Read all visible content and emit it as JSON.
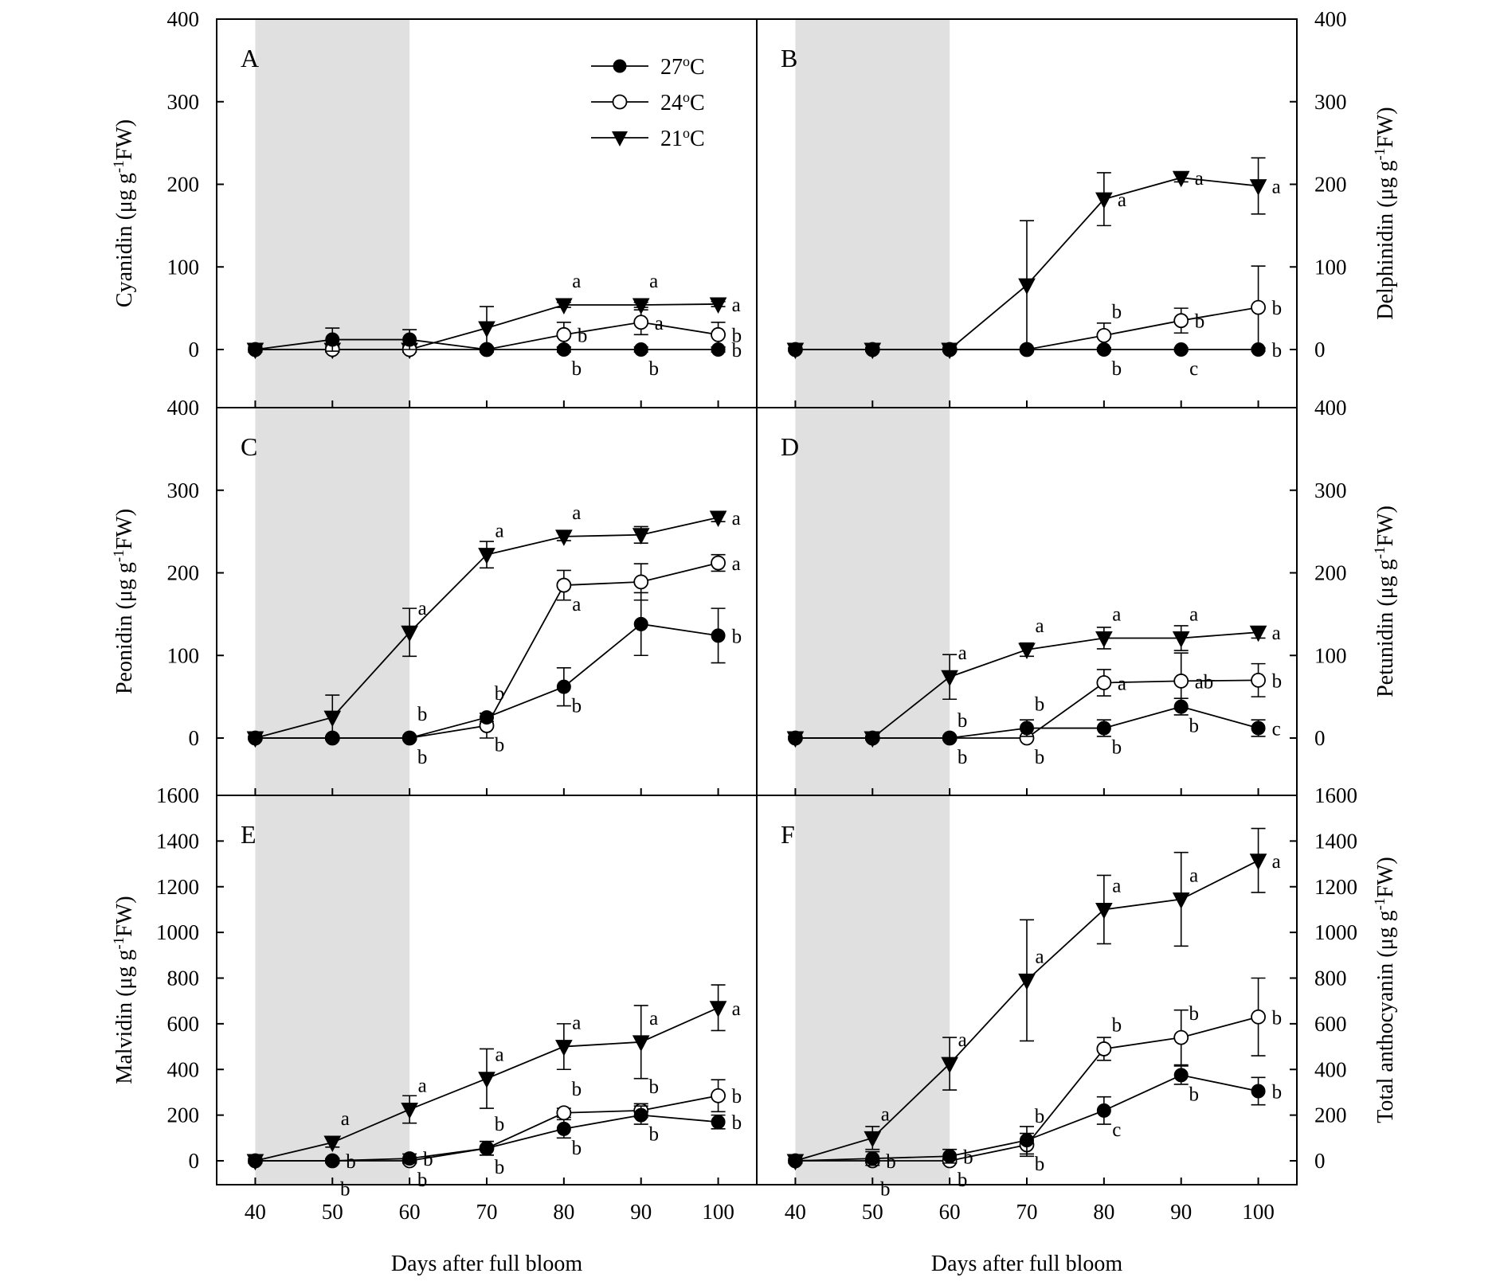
{
  "figure": {
    "x_axis_label": "Days after full bloom",
    "legend": {
      "placement": "panel-A-top-right",
      "entries": [
        {
          "label": "27",
          "degree": "o",
          "unit": "C",
          "marker": "filled-circle"
        },
        {
          "label": "24",
          "degree": "o",
          "unit": "C",
          "marker": "open-circle"
        },
        {
          "label": "21",
          "degree": "o",
          "unit": "C",
          "marker": "filled-triangle-down"
        }
      ]
    },
    "shaded_interval": [
      40,
      60
    ],
    "colors": {
      "shade": "#e0e0e0",
      "line": "#000000"
    }
  },
  "chart_data": [
    {
      "type": "line",
      "panel": "A",
      "ylabel": {
        "main": "Cyanidin (μg g",
        "sup": "-1",
        "tail": "FW)"
      },
      "y_axis_side": "left",
      "ylim": [
        0,
        400
      ],
      "yticks": [
        0,
        100,
        200,
        300,
        400
      ],
      "xticks": [
        40,
        50,
        60,
        70,
        80,
        90,
        100
      ],
      "x": [
        40,
        50,
        60,
        70,
        80,
        90,
        100
      ],
      "series": [
        {
          "name": "27°C",
          "values": [
            0,
            12,
            12,
            0,
            0,
            0,
            0
          ],
          "errors": [
            3,
            14,
            12,
            3,
            3,
            3,
            3
          ],
          "letters": [
            null,
            null,
            null,
            null,
            {
              "t": "b",
              "pos": "below"
            },
            {
              "t": "b",
              "pos": "below"
            },
            {
              "t": "b",
              "pos": "right"
            }
          ]
        },
        {
          "name": "24°C",
          "values": [
            0,
            0,
            0,
            0,
            18,
            33,
            18
          ],
          "errors": [
            3,
            3,
            3,
            3,
            15,
            15,
            15
          ],
          "letters": [
            null,
            null,
            null,
            null,
            {
              "t": "b",
              "pos": "right"
            },
            {
              "t": "a",
              "pos": "right"
            },
            {
              "t": "b",
              "pos": "right"
            }
          ]
        },
        {
          "name": "21°C",
          "values": [
            0,
            0,
            0,
            26,
            54,
            54,
            55
          ],
          "errors": [
            3,
            3,
            3,
            26,
            3,
            3,
            3
          ],
          "letters": [
            null,
            null,
            null,
            null,
            {
              "t": "a",
              "pos": "above"
            },
            {
              "t": "a",
              "pos": "above"
            },
            {
              "t": "a",
              "pos": "right"
            }
          ]
        }
      ]
    },
    {
      "type": "line",
      "panel": "B",
      "ylabel": {
        "main": "Delphinidin (μg g",
        "sup": "-1",
        "tail": "FW)"
      },
      "y_axis_side": "right",
      "ylim": [
        0,
        400
      ],
      "yticks": [
        0,
        100,
        200,
        300,
        400
      ],
      "xticks": [
        40,
        50,
        60,
        70,
        80,
        90,
        100
      ],
      "x": [
        40,
        50,
        60,
        70,
        80,
        90,
        100
      ],
      "series": [
        {
          "name": "27°C",
          "values": [
            0,
            0,
            0,
            0,
            0,
            0,
            0
          ],
          "errors": [
            2,
            2,
            2,
            2,
            2,
            2,
            2
          ],
          "letters": [
            null,
            null,
            null,
            null,
            {
              "t": "b",
              "pos": "below"
            },
            {
              "t": "c",
              "pos": "below"
            },
            {
              "t": "b",
              "pos": "right"
            }
          ]
        },
        {
          "name": "24°C",
          "values": [
            0,
            0,
            0,
            0,
            17,
            35,
            51
          ],
          "errors": [
            2,
            2,
            2,
            2,
            15,
            15,
            50
          ],
          "letters": [
            null,
            null,
            null,
            null,
            {
              "t": "b",
              "pos": "above"
            },
            {
              "t": "b",
              "pos": "right"
            },
            {
              "t": "b",
              "pos": "right"
            }
          ]
        },
        {
          "name": "21°C",
          "values": [
            0,
            0,
            0,
            78,
            182,
            208,
            198
          ],
          "errors": [
            2,
            2,
            2,
            78,
            32,
            5,
            34
          ],
          "letters": [
            null,
            null,
            null,
            null,
            {
              "t": "a",
              "pos": "right"
            },
            {
              "t": "a",
              "pos": "right"
            },
            {
              "t": "a",
              "pos": "right"
            }
          ]
        }
      ]
    },
    {
      "type": "line",
      "panel": "C",
      "ylabel": {
        "main": "Peonidin (μg g",
        "sup": "-1",
        "tail": "FW)"
      },
      "y_axis_side": "left",
      "ylim": [
        0,
        400
      ],
      "yticks": [
        0,
        100,
        200,
        300,
        400
      ],
      "xticks": [
        40,
        50,
        60,
        70,
        80,
        90,
        100
      ],
      "x": [
        40,
        50,
        60,
        70,
        80,
        90,
        100
      ],
      "series": [
        {
          "name": "27°C",
          "values": [
            0,
            0,
            0,
            25,
            62,
            138,
            124
          ],
          "errors": [
            2,
            2,
            2,
            5,
            23,
            38,
            33
          ],
          "letters": [
            null,
            null,
            null,
            {
              "t": "b",
              "pos": "above"
            },
            {
              "t": "b",
              "pos": "below"
            },
            null,
            {
              "t": "b",
              "pos": "right"
            }
          ]
        },
        {
          "name": "24°C",
          "values": [
            0,
            0,
            0,
            15,
            185,
            189,
            212
          ],
          "errors": [
            2,
            2,
            2,
            15,
            18,
            22,
            10
          ],
          "letters": [
            null,
            null,
            {
              "t": "b",
              "pos": "below"
            },
            {
              "t": "b",
              "pos": "below"
            },
            {
              "t": "a",
              "pos": "below"
            },
            null,
            {
              "t": "a",
              "pos": "right"
            }
          ]
        },
        {
          "name": "21°C",
          "values": [
            0,
            25,
            128,
            222,
            244,
            246,
            267
          ],
          "errors": [
            2,
            27,
            29,
            16,
            5,
            10,
            5
          ],
          "letters": [
            null,
            null,
            {
              "t": "a",
              "pos": "above"
            },
            {
              "t": "a",
              "pos": "above"
            },
            {
              "t": "a",
              "pos": "above"
            },
            null,
            {
              "t": "a",
              "pos": "right"
            }
          ]
        }
      ],
      "extra_letters": [
        {
          "t": "b",
          "x": 60,
          "y": 30
        }
      ]
    },
    {
      "type": "line",
      "panel": "D",
      "ylabel": {
        "main": "Petunidin (μg g",
        "sup": "-1",
        "tail": "FW)"
      },
      "y_axis_side": "right",
      "ylim": [
        0,
        400
      ],
      "yticks": [
        0,
        100,
        200,
        300,
        400
      ],
      "xticks": [
        40,
        50,
        60,
        70,
        80,
        90,
        100
      ],
      "x": [
        40,
        50,
        60,
        70,
        80,
        90,
        100
      ],
      "series": [
        {
          "name": "27°C",
          "values": [
            0,
            0,
            0,
            12,
            12,
            38,
            12
          ],
          "errors": [
            2,
            2,
            2,
            10,
            10,
            10,
            10
          ],
          "letters": [
            null,
            null,
            null,
            {
              "t": "b",
              "pos": "above"
            },
            {
              "t": "b",
              "pos": "below"
            },
            {
              "t": "b",
              "pos": "below"
            },
            {
              "t": "c",
              "pos": "right"
            }
          ]
        },
        {
          "name": "24°C",
          "values": [
            0,
            0,
            0,
            0,
            67,
            69,
            70
          ],
          "errors": [
            2,
            2,
            2,
            2,
            16,
            34,
            20
          ],
          "letters": [
            null,
            null,
            {
              "t": "b",
              "pos": "below"
            },
            {
              "t": "b",
              "pos": "below"
            },
            {
              "t": "a",
              "pos": "right"
            },
            {
              "t": "ab",
              "pos": "right"
            },
            {
              "t": "b",
              "pos": "right"
            }
          ]
        },
        {
          "name": "21°C",
          "values": [
            0,
            0,
            74,
            107,
            121,
            121,
            128
          ],
          "errors": [
            2,
            2,
            27,
            8,
            13,
            15,
            7
          ],
          "letters": [
            null,
            null,
            {
              "t": "a",
              "pos": "above"
            },
            {
              "t": "a",
              "pos": "above"
            },
            {
              "t": "a",
              "pos": "above"
            },
            {
              "t": "a",
              "pos": "above"
            },
            {
              "t": "a",
              "pos": "right"
            }
          ]
        }
      ],
      "extra_letters": [
        {
          "t": "b",
          "x": 60,
          "y": 22
        }
      ]
    },
    {
      "type": "line",
      "panel": "E",
      "ylabel": {
        "main": "Malvidin (μg g",
        "sup": "-1",
        "tail": "FW)"
      },
      "y_axis_side": "left",
      "ylim": [
        0,
        1600
      ],
      "yticks": [
        0,
        200,
        400,
        600,
        800,
        1000,
        1200,
        1400,
        1600
      ],
      "xticks": [
        40,
        50,
        60,
        70,
        80,
        90,
        100
      ],
      "x": [
        40,
        50,
        60,
        70,
        80,
        90,
        100
      ],
      "series": [
        {
          "name": "27°C",
          "values": [
            0,
            0,
            10,
            55,
            140,
            200,
            170
          ],
          "errors": [
            10,
            10,
            20,
            30,
            40,
            40,
            30
          ],
          "letters": [
            null,
            null,
            {
              "t": "b",
              "pos": "right"
            },
            {
              "t": "b",
              "pos": "below"
            },
            {
              "t": "b",
              "pos": "below"
            },
            {
              "t": "b",
              "pos": "below"
            },
            {
              "t": "b",
              "pos": "right"
            }
          ]
        },
        {
          "name": "24°C",
          "values": [
            0,
            0,
            0,
            55,
            210,
            220,
            285
          ],
          "errors": [
            10,
            10,
            10,
            30,
            20,
            30,
            70
          ],
          "letters": [
            null,
            {
              "t": "b",
              "pos": "right"
            },
            {
              "t": "b",
              "pos": "below"
            },
            {
              "t": "b",
              "pos": "above"
            },
            {
              "t": "b",
              "pos": "above"
            },
            {
              "t": "b",
              "pos": "above"
            },
            {
              "t": "b",
              "pos": "right"
            }
          ]
        },
        {
          "name": "21°C",
          "values": [
            0,
            80,
            225,
            360,
            500,
            520,
            670
          ],
          "errors": [
            10,
            20,
            60,
            130,
            100,
            160,
            100
          ],
          "letters": [
            null,
            {
              "t": "a",
              "pos": "above"
            },
            {
              "t": "a",
              "pos": "above"
            },
            {
              "t": "a",
              "pos": "above"
            },
            {
              "t": "a",
              "pos": "above"
            },
            {
              "t": "a",
              "pos": "above"
            },
            {
              "t": "a",
              "pos": "right"
            }
          ]
        }
      ],
      "extra_letters": [
        {
          "t": "b",
          "x": 50,
          "y": -120
        }
      ]
    },
    {
      "type": "line",
      "panel": "F",
      "ylabel": {
        "main": "Total anthocyanin (μg g",
        "sup": "-1",
        "tail": "FW)"
      },
      "y_axis_side": "right",
      "ylim": [
        0,
        1600
      ],
      "yticks": [
        0,
        200,
        400,
        600,
        800,
        1000,
        1200,
        1400,
        1600
      ],
      "xticks": [
        40,
        50,
        60,
        70,
        80,
        90,
        100
      ],
      "x": [
        40,
        50,
        60,
        70,
        80,
        90,
        100
      ],
      "series": [
        {
          "name": "27°C",
          "values": [
            0,
            10,
            20,
            90,
            220,
            375,
            305
          ],
          "errors": [
            10,
            30,
            30,
            60,
            60,
            40,
            60
          ],
          "letters": [
            null,
            null,
            {
              "t": "b",
              "pos": "right"
            },
            {
              "t": "b",
              "pos": "above"
            },
            {
              "t": "c",
              "pos": "below"
            },
            {
              "t": "b",
              "pos": "below"
            },
            {
              "t": "b",
              "pos": "right"
            }
          ]
        },
        {
          "name": "24°C",
          "values": [
            0,
            0,
            0,
            70,
            490,
            540,
            630
          ],
          "errors": [
            10,
            10,
            10,
            50,
            50,
            120,
            170
          ],
          "letters": [
            null,
            {
              "t": "b",
              "pos": "right"
            },
            {
              "t": "b",
              "pos": "below"
            },
            {
              "t": "b",
              "pos": "below"
            },
            {
              "t": "b",
              "pos": "above"
            },
            {
              "t": "b",
              "pos": "above"
            },
            {
              "t": "b",
              "pos": "right"
            }
          ]
        },
        {
          "name": "21°C",
          "values": [
            0,
            100,
            425,
            790,
            1100,
            1145,
            1315
          ],
          "errors": [
            10,
            50,
            115,
            265,
            150,
            205,
            140
          ],
          "letters": [
            null,
            {
              "t": "a",
              "pos": "above"
            },
            {
              "t": "a",
              "pos": "above"
            },
            {
              "t": "a",
              "pos": "above"
            },
            {
              "t": "a",
              "pos": "above"
            },
            {
              "t": "a",
              "pos": "above"
            },
            {
              "t": "a",
              "pos": "right"
            }
          ]
        }
      ],
      "extra_letters": [
        {
          "t": "b",
          "x": 50,
          "y": -120
        }
      ]
    }
  ]
}
